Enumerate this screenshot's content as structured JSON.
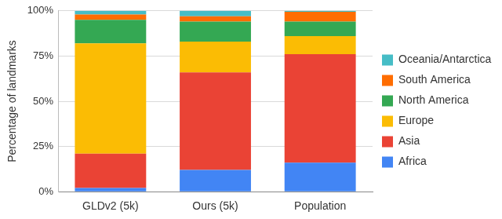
{
  "chart_data": {
    "type": "bar",
    "stacked": true,
    "grid": true,
    "legend": "right",
    "y_label": "Percentage of landmarks",
    "categories": [
      "GLDv2 (5k)",
      "Ours (5k)",
      "Population"
    ],
    "ylim": [
      0,
      100
    ],
    "yticks": [
      {
        "value": 0,
        "label": "0%"
      },
      {
        "value": 25,
        "label": "25%"
      },
      {
        "value": 50,
        "label": "50%"
      },
      {
        "value": 75,
        "label": "75%"
      },
      {
        "value": 100,
        "label": "100%"
      }
    ],
    "series": [
      {
        "name": "Africa",
        "color": "#4285f4",
        "values": [
          2,
          12,
          16
        ]
      },
      {
        "name": "Asia",
        "color": "#ea4335",
        "values": [
          19,
          54,
          60
        ]
      },
      {
        "name": "Europe",
        "color": "#fbbc04",
        "values": [
          61,
          17,
          10
        ]
      },
      {
        "name": "North America",
        "color": "#34a853",
        "values": [
          13,
          11,
          8
        ]
      },
      {
        "name": "South America",
        "color": "#ff6d01",
        "values": [
          3,
          3,
          5.5
        ]
      },
      {
        "name": "Oceania/Antarctica",
        "color": "#46bdc6",
        "values": [
          2,
          3,
          0.5
        ]
      }
    ]
  }
}
